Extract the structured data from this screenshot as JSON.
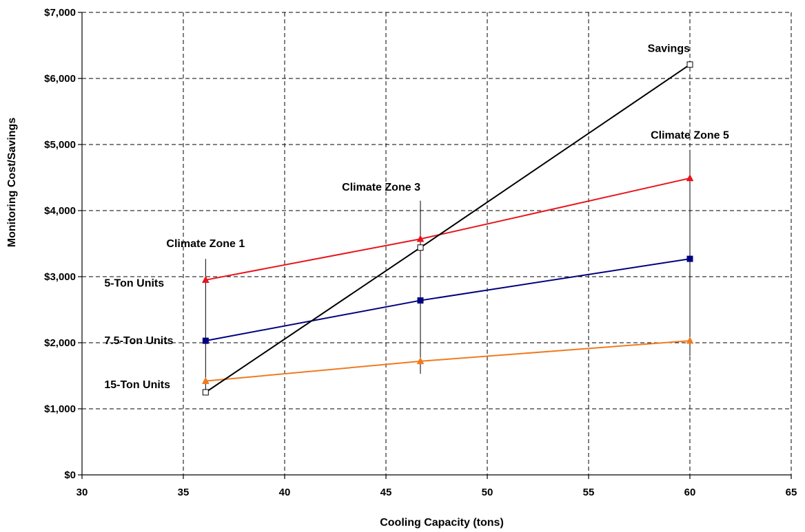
{
  "chart_data": {
    "type": "line",
    "xlabel": "Cooling Capacity (tons)",
    "ylabel": "Monitoring Cost/Savings",
    "xlim": [
      30,
      65
    ],
    "ylim": [
      0,
      7000
    ],
    "x_ticks": [
      30,
      35,
      40,
      45,
      50,
      55,
      60,
      65
    ],
    "x_tick_labels": [
      "30",
      "35",
      "40",
      "45",
      "50",
      "55",
      "60",
      "65"
    ],
    "y_ticks": [
      0,
      1000,
      2000,
      3000,
      4000,
      5000,
      6000,
      7000
    ],
    "y_tick_labels": [
      "$0",
      "$1,000",
      "$2,000",
      "$3,000",
      "$4,000",
      "$5,000",
      "$6,000",
      "$7,000"
    ],
    "grid": true,
    "series": [
      {
        "name": "5-Ton Units",
        "color": "#e8141c",
        "marker": "triangle",
        "points": [
          [
            36.1,
            2950
          ],
          [
            46.7,
            3570
          ],
          [
            60,
            4490
          ]
        ]
      },
      {
        "name": "7.5-Ton Units",
        "color": "#00007f",
        "marker": "square",
        "points": [
          [
            36.1,
            2030
          ],
          [
            46.7,
            2640
          ],
          [
            60,
            3270
          ]
        ]
      },
      {
        "name": "15-Ton Units",
        "color": "#f07a1e",
        "marker": "triangle",
        "points": [
          [
            36.1,
            1420
          ],
          [
            46.7,
            1720
          ],
          [
            60,
            2030
          ]
        ]
      },
      {
        "name": "Savings",
        "color": "#000000",
        "marker": "open-square",
        "points": [
          [
            36.1,
            1250
          ],
          [
            46.7,
            3440
          ],
          [
            60,
            6210
          ]
        ]
      }
    ],
    "zone_lines": [
      {
        "x": 36.1,
        "y_range": [
          1220,
          3270
        ]
      },
      {
        "x": 46.7,
        "y_range": [
          1530,
          4150
        ]
      },
      {
        "x": 60,
        "y_range": [
          1800,
          4920
        ]
      }
    ],
    "annotations": [
      {
        "text": "Climate Zone 1",
        "x": 36.1,
        "y": 3450,
        "anchor": "middle"
      },
      {
        "text": "Climate Zone 3",
        "x": 46.7,
        "y": 4300,
        "anchor": "end"
      },
      {
        "text": "Climate Zone 5",
        "x": 60,
        "y": 5090,
        "anchor": "middle"
      },
      {
        "text": "Savings",
        "x": 60,
        "y": 6400,
        "anchor": "end"
      },
      {
        "text": "5-Ton Units",
        "x": 31.1,
        "y": 2850,
        "anchor": "start"
      },
      {
        "text": "7.5-Ton Units",
        "x": 31.1,
        "y": 1980,
        "anchor": "start"
      },
      {
        "text": "15-Ton Units",
        "x": 31.1,
        "y": 1310,
        "anchor": "start"
      }
    ]
  }
}
